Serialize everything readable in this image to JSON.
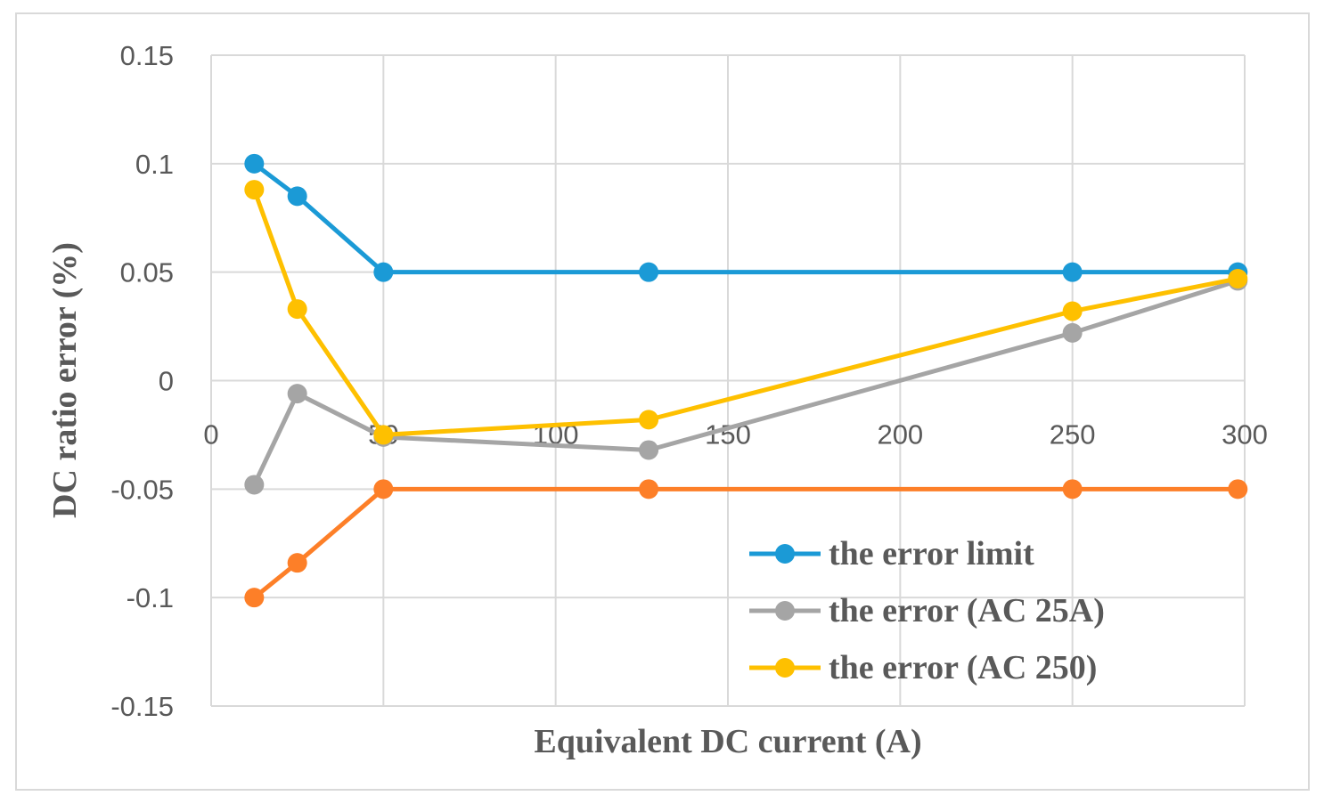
{
  "chart_data": {
    "type": "line",
    "title": "",
    "xlabel": "Equivalent DC current (A)",
    "ylabel": "DC ratio error (%)",
    "xlim": [
      0,
      300
    ],
    "ylim": [
      -0.15,
      0.15
    ],
    "xticks": [
      "0",
      "50",
      "100",
      "150",
      "200",
      "250",
      "300"
    ],
    "yticks": [
      "0.15",
      "0.1",
      "0.05",
      "0",
      "-0.05",
      "-0.1",
      "-0.15"
    ],
    "grid": true,
    "legend_position": "bottom-right",
    "series": [
      {
        "name": "the error limit",
        "color": "#1b9ad6",
        "x": [
          12.5,
          25,
          50,
          127,
          250,
          298
        ],
        "y": [
          0.1,
          0.085,
          0.05,
          0.05,
          0.05,
          0.05
        ]
      },
      {
        "name": "",
        "color": "#fd7f28",
        "x": [
          12.5,
          25,
          50,
          127,
          250,
          298
        ],
        "y": [
          -0.1,
          -0.084,
          -0.05,
          -0.05,
          -0.05,
          -0.05
        ]
      },
      {
        "name": "the error (AC 25A)",
        "color": "#a5a5a5",
        "x": [
          12.5,
          25,
          50,
          127,
          250,
          298
        ],
        "y": [
          -0.048,
          -0.006,
          -0.026,
          -0.032,
          0.022,
          0.046
        ]
      },
      {
        "name": "the error (AC 250)",
        "color": "#fec000",
        "x": [
          12.5,
          25,
          50,
          127,
          250,
          298
        ],
        "y": [
          0.088,
          0.033,
          -0.025,
          -0.018,
          0.032,
          0.047
        ]
      }
    ],
    "legend": [
      "the error limit",
      "the error (AC 25A)",
      "the error (AC 250)"
    ]
  }
}
